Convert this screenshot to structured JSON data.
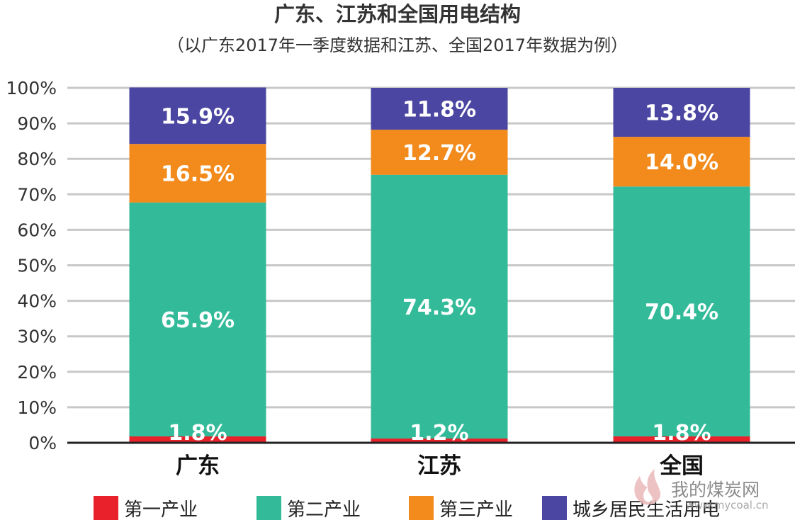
{
  "chart_data": {
    "type": "bar",
    "stacked": true,
    "title": "广东、江苏和全国用电结构",
    "subtitle": "（以广东2017年一季度数据和江苏、全国2017年数据为例）",
    "categories": [
      "广东",
      "江苏",
      "全国"
    ],
    "ylim": [
      0,
      100
    ],
    "yticks": [
      "0%",
      "10%",
      "20%",
      "30%",
      "40%",
      "50%",
      "60%",
      "70%",
      "80%",
      "90%",
      "100%"
    ],
    "grid": true,
    "legend_position": "bottom",
    "series": [
      {
        "name": "第一产业",
        "color": "#e8212a",
        "values": [
          1.8,
          1.2,
          1.8
        ],
        "labels": [
          "1.8%",
          "1.2%",
          "1.8%"
        ]
      },
      {
        "name": "第二产业",
        "color": "#33bb99",
        "values": [
          65.9,
          74.3,
          70.4
        ],
        "labels": [
          "65.9%",
          "74.3%",
          "70.4%"
        ]
      },
      {
        "name": "第三产业",
        "color": "#f28a1c",
        "values": [
          16.5,
          12.7,
          14.0
        ],
        "labels": [
          "16.5%",
          "12.7%",
          "14.0%"
        ]
      },
      {
        "name": "城乡居民生活用电",
        "color": "#4b46a2",
        "values": [
          15.9,
          11.8,
          13.8
        ],
        "labels": [
          "15.9%",
          "11.8%",
          "13.8%"
        ]
      }
    ]
  },
  "watermark": {
    "text": "我的煤炭网",
    "url": "www.mycoal.cn",
    "icon": "flame-logo-icon"
  }
}
